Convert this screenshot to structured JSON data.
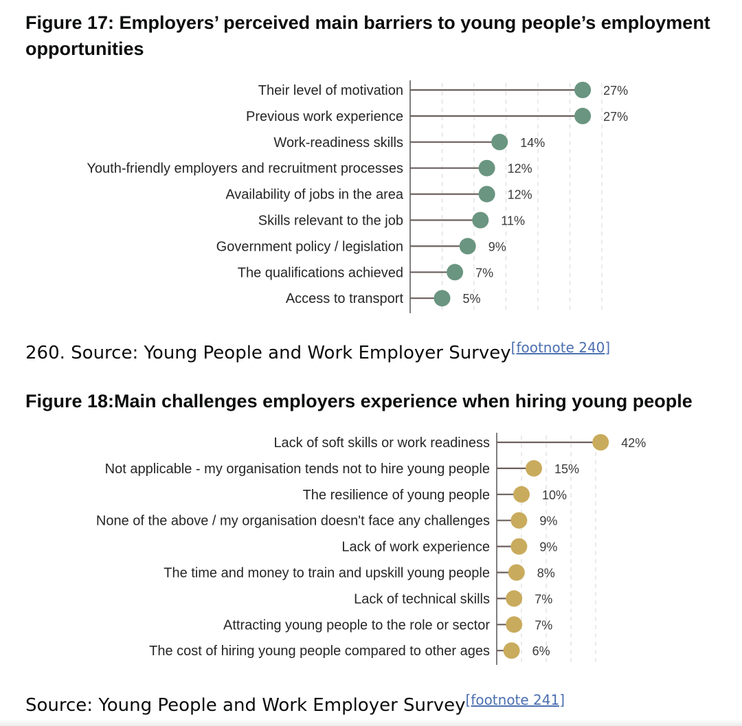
{
  "figure17": {
    "title": "Figure 17: Employers’ perceived main barriers to young people’s employment opportunities",
    "source_text": "260. Source: Young People and Work Employer Survey",
    "footnote": "[footnote 240]"
  },
  "figure18": {
    "title": "Figure 18:Main challenges employers experience when hiring young people",
    "source_text": "Source: Young People and Work Employer Survey",
    "footnote": "[footnote 241]"
  },
  "colors": {
    "fig17_dot": "#6a9580",
    "fig18_dot": "#c9ab5d",
    "stem": "#6b5f5d",
    "gridline": "#dcdcdc",
    "link": "#4c6fb1"
  },
  "chart_data": [
    {
      "type": "lollipop",
      "orientation": "horizontal",
      "value_suffix": "%",
      "grid": "dashed vertical",
      "xlim": [
        0,
        30
      ],
      "categories": [
        "Their level of motivation",
        "Previous work experience",
        "Work-readiness skills",
        "Youth-friendly employers and recruitment processes",
        "Availability of jobs in the area",
        "Skills relevant to the job",
        "Government policy / legislation",
        "The qualifications achieved",
        "Access to transport"
      ],
      "values": [
        27,
        27,
        14,
        12,
        12,
        11,
        9,
        7,
        5
      ]
    },
    {
      "type": "lollipop",
      "orientation": "horizontal",
      "value_suffix": "%",
      "grid": "dashed vertical",
      "xlim": [
        0,
        45
      ],
      "categories": [
        "Lack of soft skills or work readiness",
        "Not applicable - my organisation tends not to hire young people",
        "The resilience of young people",
        "None of the above / my organisation doesn't face any challenges",
        "Lack of work experience",
        "The time and money to train and upskill young people",
        "Lack of technical skills",
        "Attracting young people to the role or sector",
        "The cost of hiring young people compared to other ages"
      ],
      "values": [
        42,
        15,
        10,
        9,
        9,
        8,
        7,
        7,
        6
      ]
    }
  ]
}
